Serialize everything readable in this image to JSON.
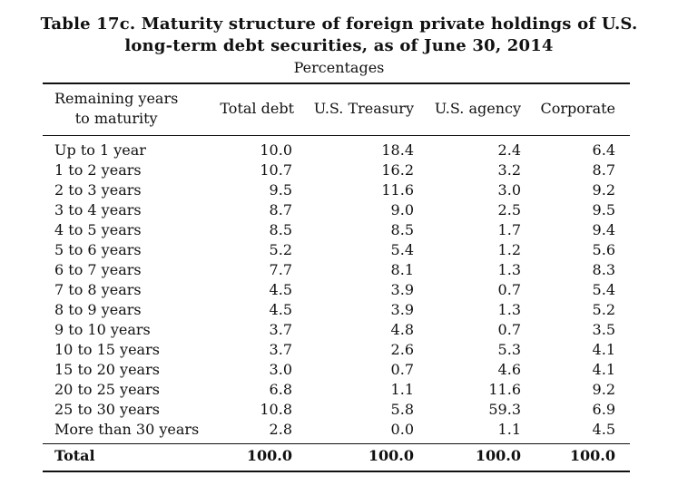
{
  "title": {
    "line1": "Table 17c. Maturity structure of foreign private holdings of U.S.",
    "line2": "long-term debt securities, as of June 30, 2014",
    "subtitle": "Percentages"
  },
  "headers": {
    "col0_line1": "Remaining years",
    "col0_line2": "to maturity",
    "col1": "Total debt",
    "col2": "U.S. Treasury",
    "col3": "U.S. agency",
    "col4": "Corporate"
  },
  "rows": [
    {
      "label": "Up to 1 year",
      "total": "10.0",
      "treasury": "18.4",
      "agency": "2.4",
      "corporate": "6.4"
    },
    {
      "label": "1 to 2 years",
      "total": "10.7",
      "treasury": "16.2",
      "agency": "3.2",
      "corporate": "8.7"
    },
    {
      "label": "2 to 3 years",
      "total": "9.5",
      "treasury": "11.6",
      "agency": "3.0",
      "corporate": "9.2"
    },
    {
      "label": "3 to 4 years",
      "total": "8.7",
      "treasury": "9.0",
      "agency": "2.5",
      "corporate": "9.5"
    },
    {
      "label": "4 to 5 years",
      "total": "8.5",
      "treasury": "8.5",
      "agency": "1.7",
      "corporate": "9.4"
    },
    {
      "label": "5 to 6 years",
      "total": "5.2",
      "treasury": "5.4",
      "agency": "1.2",
      "corporate": "5.6"
    },
    {
      "label": "6 to 7 years",
      "total": "7.7",
      "treasury": "8.1",
      "agency": "1.3",
      "corporate": "8.3"
    },
    {
      "label": "7 to 8 years",
      "total": "4.5",
      "treasury": "3.9",
      "agency": "0.7",
      "corporate": "5.4"
    },
    {
      "label": "8 to 9 years",
      "total": "4.5",
      "treasury": "3.9",
      "agency": "1.3",
      "corporate": "5.2"
    },
    {
      "label": "9 to 10 years",
      "total": "3.7",
      "treasury": "4.8",
      "agency": "0.7",
      "corporate": "3.5"
    },
    {
      "label": "10 to 15 years",
      "total": "3.7",
      "treasury": "2.6",
      "agency": "5.3",
      "corporate": "4.1"
    },
    {
      "label": "15 to 20 years",
      "total": "3.0",
      "treasury": "0.7",
      "agency": "4.6",
      "corporate": "4.1"
    },
    {
      "label": "20 to 25 years",
      "total": "6.8",
      "treasury": "1.1",
      "agency": "11.6",
      "corporate": "9.2"
    },
    {
      "label": "25 to 30 years",
      "total": "10.8",
      "treasury": "5.8",
      "agency": "59.3",
      "corporate": "6.9"
    },
    {
      "label": "More than 30 years",
      "total": "2.8",
      "treasury": "0.0",
      "agency": "1.1",
      "corporate": "4.5"
    }
  ],
  "total_row": {
    "label": "Total",
    "total": "100.0",
    "treasury": "100.0",
    "agency": "100.0",
    "corporate": "100.0"
  }
}
